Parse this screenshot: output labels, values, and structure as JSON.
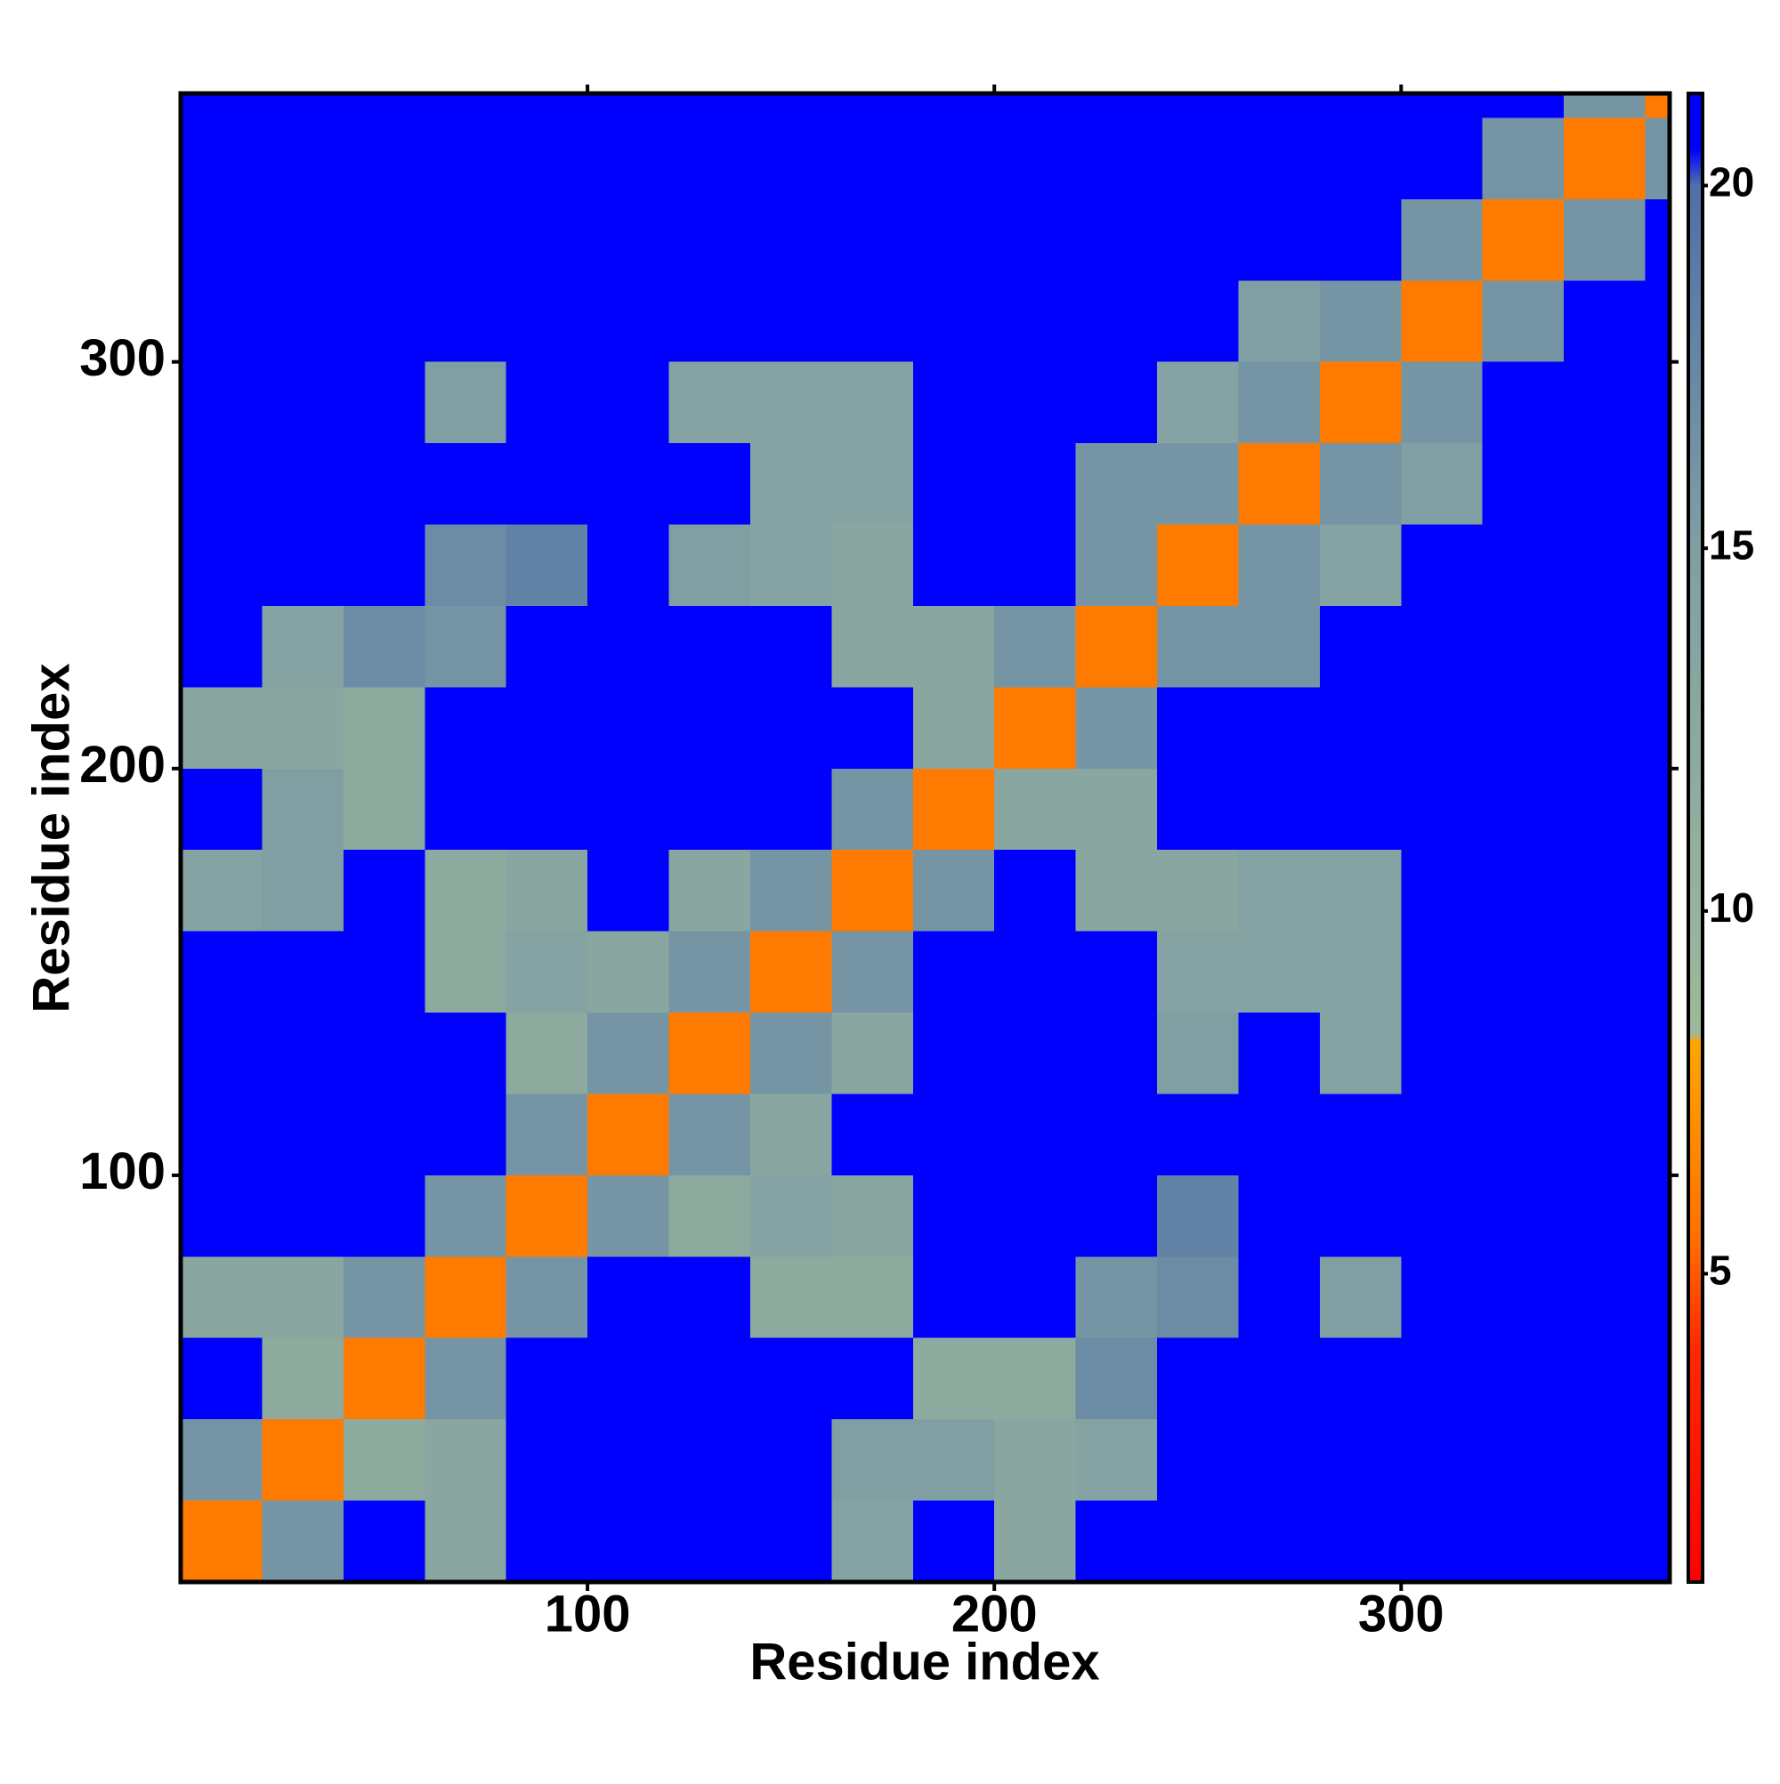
{
  "chart_data": {
    "type": "heatmap",
    "xlabel": "Residue index",
    "ylabel": "Residue index",
    "xlim": [
      0,
      366
    ],
    "ylim": [
      0,
      366
    ],
    "xticks": [
      100,
      200,
      300
    ],
    "yticks": [
      100,
      200,
      300
    ],
    "xbins": [
      0,
      20,
      40,
      60,
      80,
      100,
      120,
      140,
      160,
      180,
      200,
      220,
      240,
      260,
      280,
      300,
      320,
      340,
      360,
      366
    ],
    "ybins": [
      0,
      20,
      40,
      60,
      80,
      100,
      120,
      140,
      160,
      180,
      200,
      220,
      240,
      260,
      280,
      300,
      320,
      340,
      360,
      366
    ],
    "z": [
      [
        6,
        16,
        21,
        13,
        21,
        21,
        21,
        21,
        14,
        21,
        13,
        21,
        21,
        21,
        21,
        21,
        21,
        21,
        21
      ],
      [
        16,
        6,
        12,
        13,
        21,
        21,
        21,
        21,
        15,
        15,
        13,
        14,
        21,
        21,
        21,
        21,
        21,
        21,
        21
      ],
      [
        21,
        12,
        6,
        16,
        21,
        21,
        21,
        21,
        21,
        12,
        12,
        17,
        21,
        21,
        21,
        21,
        21,
        21,
        21
      ],
      [
        13,
        13,
        16,
        6,
        16,
        21,
        21,
        12,
        12,
        21,
        21,
        16,
        17,
        21,
        15,
        21,
        21,
        21,
        21
      ],
      [
        21,
        21,
        21,
        16,
        6,
        16,
        12,
        14,
        13,
        21,
        21,
        21,
        18,
        21,
        21,
        21,
        21,
        21,
        21
      ],
      [
        21,
        21,
        21,
        21,
        16,
        6,
        16,
        13,
        21,
        21,
        21,
        21,
        21,
        21,
        21,
        21,
        21,
        21,
        21
      ],
      [
        21,
        21,
        21,
        21,
        12,
        16,
        6,
        16,
        13,
        21,
        21,
        21,
        15,
        21,
        14,
        21,
        21,
        21,
        21
      ],
      [
        21,
        21,
        21,
        12,
        14,
        13,
        16,
        6,
        16,
        21,
        21,
        21,
        14,
        14,
        14,
        21,
        21,
        21,
        21
      ],
      [
        14,
        15,
        21,
        12,
        13,
        21,
        13,
        16,
        6,
        16,
        21,
        13,
        13,
        14,
        14,
        21,
        21,
        21,
        21
      ],
      [
        21,
        15,
        12,
        21,
        21,
        21,
        21,
        21,
        16,
        6,
        13,
        13,
        21,
        21,
        21,
        21,
        21,
        21,
        21
      ],
      [
        13,
        13,
        12,
        21,
        21,
        21,
        21,
        21,
        21,
        13,
        6,
        16,
        21,
        21,
        21,
        21,
        21,
        21,
        21
      ],
      [
        21,
        14,
        17,
        16,
        21,
        21,
        21,
        21,
        13,
        13,
        16,
        6,
        16,
        16,
        21,
        21,
        21,
        21,
        21
      ],
      [
        21,
        21,
        21,
        17,
        18,
        21,
        15,
        14,
        13,
        21,
        21,
        16,
        6,
        16,
        14,
        21,
        21,
        21,
        21
      ],
      [
        21,
        21,
        21,
        21,
        21,
        21,
        21,
        14,
        14,
        21,
        21,
        16,
        16,
        6,
        16,
        15,
        21,
        21,
        21
      ],
      [
        21,
        21,
        21,
        15,
        21,
        21,
        14,
        14,
        14,
        21,
        21,
        21,
        14,
        16,
        6,
        16,
        21,
        21,
        21
      ],
      [
        21,
        21,
        21,
        21,
        21,
        21,
        21,
        21,
        21,
        21,
        21,
        21,
        21,
        15,
        16,
        6,
        16,
        21,
        21
      ],
      [
        21,
        21,
        21,
        21,
        21,
        21,
        21,
        21,
        21,
        21,
        21,
        21,
        21,
        21,
        21,
        16,
        6,
        16,
        21
      ],
      [
        21,
        21,
        21,
        21,
        21,
        21,
        21,
        21,
        21,
        21,
        21,
        21,
        21,
        21,
        21,
        21,
        16,
        6,
        16
      ],
      [
        21,
        21,
        21,
        21,
        21,
        21,
        21,
        21,
        21,
        21,
        21,
        21,
        21,
        21,
        21,
        21,
        21,
        16,
        6
      ]
    ],
    "clim": [
      0.75,
      21.27
    ],
    "cticks": [
      5,
      10,
      15,
      20
    ],
    "colorscale": [
      [
        0.75,
        "#ff0000"
      ],
      [
        4,
        "#ff2a00"
      ],
      [
        5.5,
        "#ff7000"
      ],
      [
        8.2,
        "#ffa500"
      ],
      [
        8.3,
        "#9fb89a"
      ],
      [
        15,
        "#7f9fa3"
      ],
      [
        20,
        "#4f6fa8"
      ],
      [
        20.5,
        "#0000ff"
      ],
      [
        21.27,
        "#0000ff"
      ]
    ]
  }
}
